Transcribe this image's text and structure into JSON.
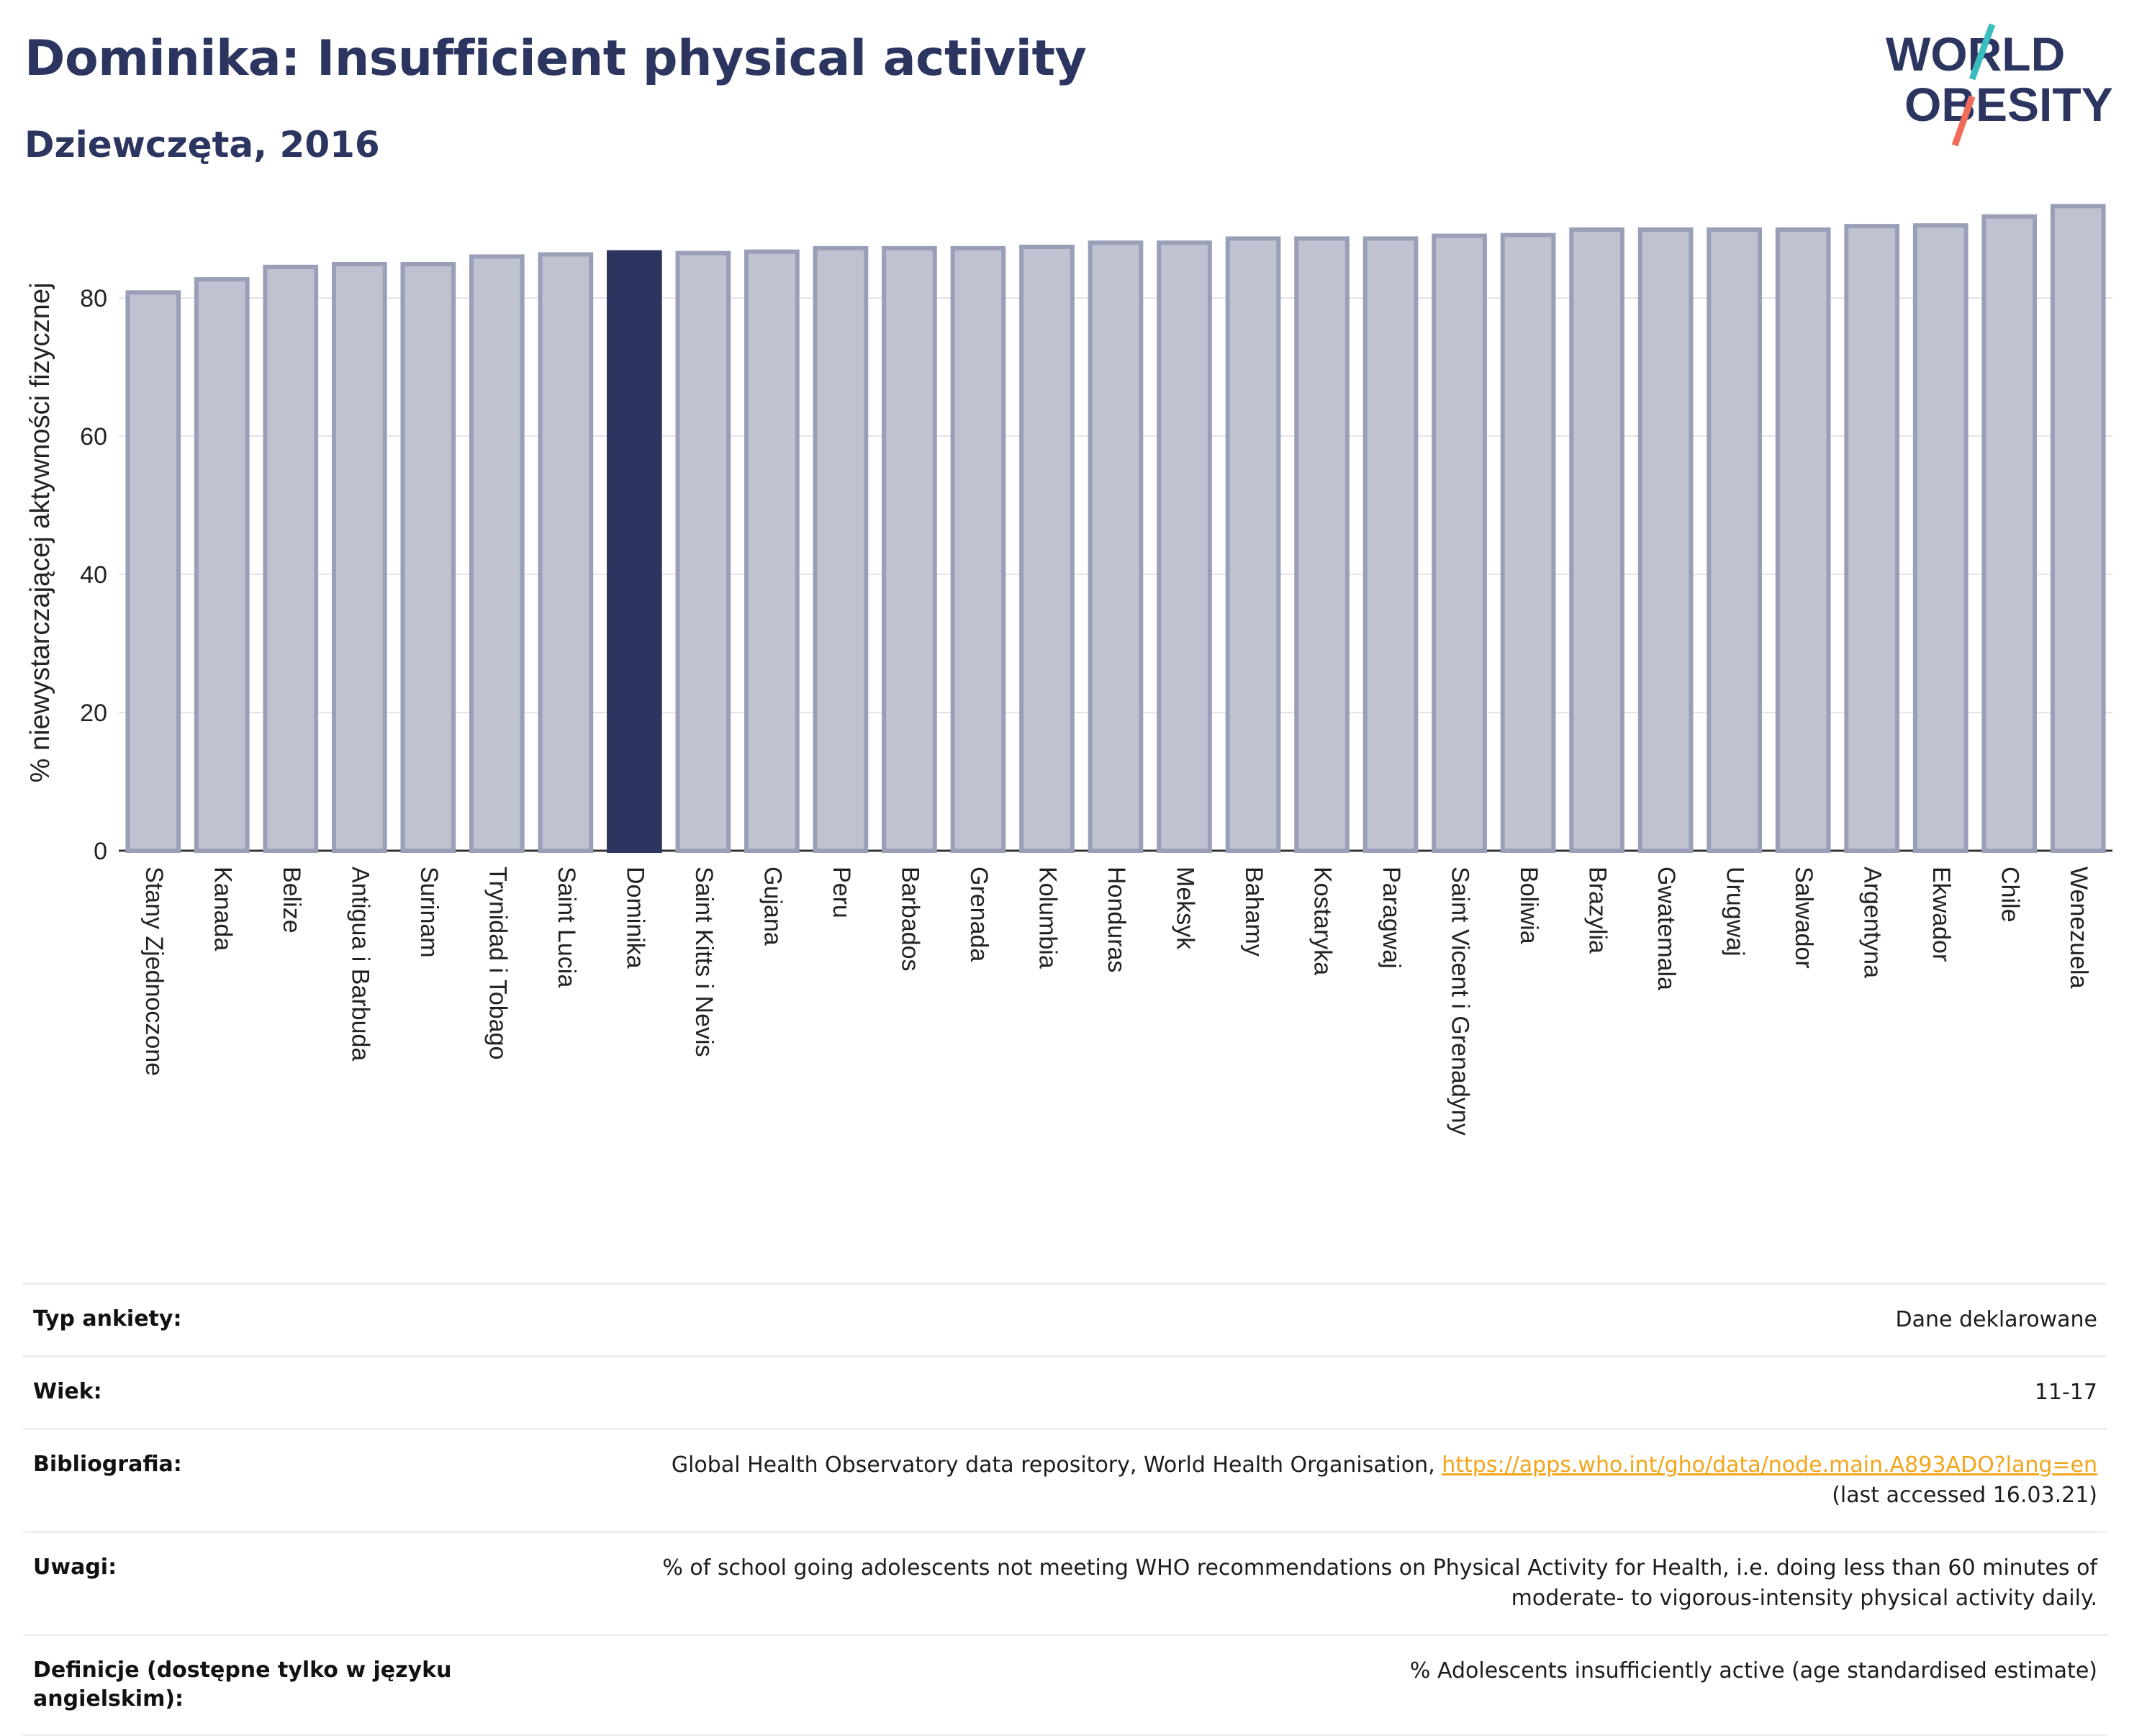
{
  "header": {
    "title": "Dominika: Insufficient physical activity",
    "subtitle": "Dziewczęta, 2016"
  },
  "logo": {
    "line1": "WORLD",
    "line2": "OBESITY"
  },
  "colors": {
    "highlight": "#2b3560",
    "bar_fill": "#bfc2d0",
    "bar_stroke": "#9a9fb8",
    "link": "#f2a51a",
    "title": "#2b3560"
  },
  "chart_data": {
    "type": "bar",
    "ylabel": "% niewystarczającej aktywności fizycznej",
    "xlabel": "",
    "ylim": [
      0,
      95
    ],
    "yticks": [
      0,
      20,
      40,
      60,
      80
    ],
    "grid": true,
    "highlight": "Dominika",
    "categories": [
      "Stany Zjednoczone",
      "Kanada",
      "Belize",
      "Antigua i Barbuda",
      "Surinam",
      "Trynidad i Tobago",
      "Saint Lucia",
      "Dominika",
      "Saint Kitts i Nevis",
      "Gujana",
      "Peru",
      "Barbados",
      "Grenada",
      "Kolumbia",
      "Honduras",
      "Meksyk",
      "Bahamy",
      "Kostaryka",
      "Paragwaj",
      "Saint Vicent i Grenadyny",
      "Boliwia",
      "Brazylia",
      "Gwatemala",
      "Urugwaj",
      "Salwador",
      "Argentyna",
      "Ekwador",
      "Chile",
      "Wenezuela"
    ],
    "values": [
      80.8,
      82.7,
      84.5,
      84.9,
      84.9,
      86.0,
      86.3,
      86.6,
      86.5,
      86.7,
      87.2,
      87.2,
      87.2,
      87.4,
      88.0,
      88.0,
      88.6,
      88.6,
      88.6,
      89.0,
      89.1,
      89.9,
      89.9,
      89.9,
      89.9,
      90.4,
      90.5,
      91.8,
      93.3
    ]
  },
  "info": [
    {
      "label": "Typ ankiety:",
      "value": "Dane deklarowane"
    },
    {
      "label": "Wiek:",
      "value": "11-17"
    },
    {
      "label": "Bibliografia:",
      "value": "Global Health Observatory data repository, World Health Organisation, ",
      "link": "https://apps.who.int/gho/data/node.main.A893ADO?lang=en",
      "value2": "(last accessed 16.03.21)"
    },
    {
      "label": "Uwagi:",
      "value": "% of school going adolescents not meeting WHO recommendations on Physical Activity for Health, i.e. doing less than 60 minutes of",
      "value2": "moderate- to vigorous-intensity physical activity daily."
    },
    {
      "label": "Definicje (dostępne tylko w języku angielskim):",
      "value": "% Adolescents insufficiently active (age standardised estimate)"
    }
  ]
}
